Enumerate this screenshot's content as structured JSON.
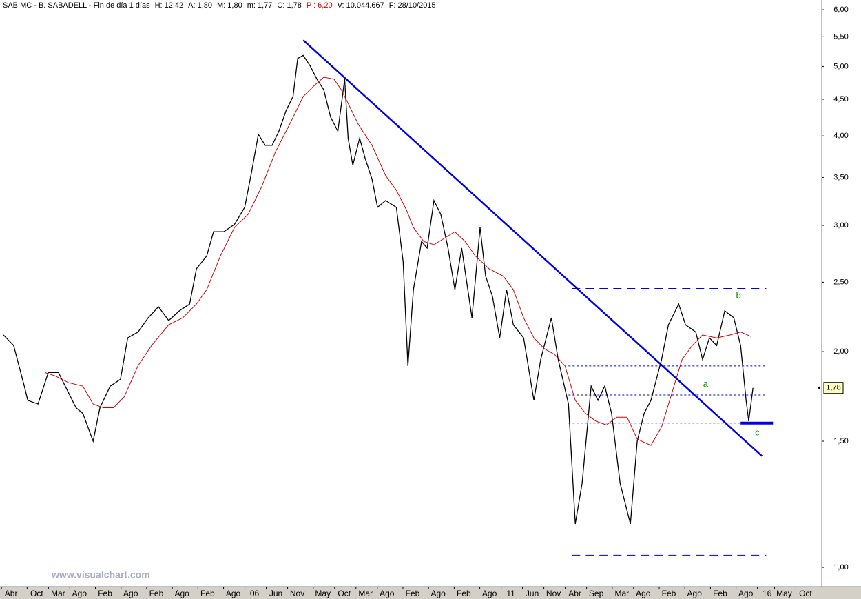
{
  "header": [
    {
      "text": "SAB.MC - B. SABADELL - Fin de día 1 días",
      "color": "#000000"
    },
    {
      "text": "H: 12:42",
      "color": "#000000"
    },
    {
      "text": "A: 1,80",
      "color": "#000000"
    },
    {
      "text": "M: 1,80",
      "color": "#000000"
    },
    {
      "text": "m: 1,77",
      "color": "#000000"
    },
    {
      "text": "C: 1,78",
      "color": "#000000"
    },
    {
      "text": "P : 6,20",
      "color": "#e00000"
    },
    {
      "text": "V: 10.044.667",
      "color": "#000000"
    },
    {
      "text": "F: 28/10/2015",
      "color": "#000000"
    }
  ],
  "chart_data": {
    "type": "line",
    "log_scale": true,
    "xlim": [
      -2.6,
      189.8
    ],
    "ylim": [
      0.94,
      6.19
    ],
    "xticks": [
      {
        "value": 0,
        "label": "Abr"
      },
      {
        "value": 6,
        "label": "Oct"
      },
      {
        "value": 11,
        "label": "Mar"
      },
      {
        "value": 16,
        "label": "Ago"
      },
      {
        "value": 22,
        "label": "Feb"
      },
      {
        "value": 28,
        "label": "Ago"
      },
      {
        "value": 34,
        "label": "Feb"
      },
      {
        "value": 40,
        "label": "Ago"
      },
      {
        "value": 46,
        "label": "Feb"
      },
      {
        "value": 52,
        "label": "Ago"
      },
      {
        "value": 57,
        "label": "06"
      },
      {
        "value": 62,
        "label": "Jun"
      },
      {
        "value": 67,
        "label": "Nov"
      },
      {
        "value": 73,
        "label": "May"
      },
      {
        "value": 78,
        "label": "Oct"
      },
      {
        "value": 83,
        "label": "Mar"
      },
      {
        "value": 88,
        "label": "Ago"
      },
      {
        "value": 94,
        "label": "Feb"
      },
      {
        "value": 100,
        "label": "Ago"
      },
      {
        "value": 106,
        "label": "Feb"
      },
      {
        "value": 112,
        "label": "Ago"
      },
      {
        "value": 117,
        "label": "11"
      },
      {
        "value": 122,
        "label": "Jun"
      },
      {
        "value": 127,
        "label": "Nov"
      },
      {
        "value": 132,
        "label": "Abr"
      },
      {
        "value": 137,
        "label": "Sep"
      },
      {
        "value": 143,
        "label": "Mar"
      },
      {
        "value": 148,
        "label": "Ago"
      },
      {
        "value": 154,
        "label": "Feb"
      },
      {
        "value": 160,
        "label": "Ago"
      },
      {
        "value": 166,
        "label": "Feb"
      },
      {
        "value": 172,
        "label": "Ago"
      },
      {
        "value": 177,
        "label": "16"
      },
      {
        "value": 181,
        "label": "May"
      },
      {
        "value": 186,
        "label": "Oct"
      }
    ],
    "yticks": [
      {
        "value": 1.0,
        "label": "1,00"
      },
      {
        "value": 1.5,
        "label": "1,50"
      },
      {
        "value": 2.0,
        "label": "2,00"
      },
      {
        "value": 2.5,
        "label": "2,50"
      },
      {
        "value": 3.0,
        "label": "3,00"
      },
      {
        "value": 3.5,
        "label": "3,50"
      },
      {
        "value": 4.0,
        "label": "4,00"
      },
      {
        "value": 4.5,
        "label": "4,50"
      },
      {
        "value": 5.0,
        "label": "5,00"
      },
      {
        "value": 5.5,
        "label": "5,50"
      },
      {
        "value": 6.0,
        "label": "6,00"
      }
    ],
    "series": [
      {
        "color": "#000000",
        "x": [
          -1.8,
          0.6,
          3.1,
          3.9,
          6.3,
          8.7,
          11.1,
          13.5,
          15.2,
          16.8,
          19.2,
          20.8,
          23.2,
          25.6,
          27.3,
          29.7,
          32.1,
          34.5,
          36.9,
          39.4,
          41.8,
          43.4,
          45.8,
          47.4,
          49.8,
          52.3,
          54.7,
          56.3,
          57.9,
          59.5,
          61.1,
          62.7,
          64.4,
          66.0,
          67.1,
          68.4,
          70.0,
          71.6,
          73.2,
          74.8,
          76.5,
          78.1,
          78.9,
          80.0,
          81.6,
          82.9,
          84.5,
          85.8,
          87.7,
          90.2,
          91.8,
          92.9,
          94.2,
          96.1,
          97.4,
          99.0,
          100.6,
          102.3,
          103.9,
          105.5,
          107.9,
          109.8,
          111.1,
          112.7,
          114.4,
          116.0,
          117.6,
          120.0,
          122.4,
          124.0,
          126.5,
          128.1,
          130.5,
          132.1,
          133.7,
          135.8,
          137.4,
          139.0,
          140.6,
          142.6,
          145.0,
          146.6,
          148.2,
          149.8,
          152.3,
          153.9,
          156.3,
          157.9,
          160.3,
          161.9,
          163.5,
          165.2,
          167.1,
          169.2,
          170.8,
          172.1,
          172.7,
          173.7
        ],
        "values": [
          2.11,
          2.04,
          1.79,
          1.71,
          1.69,
          1.87,
          1.87,
          1.75,
          1.67,
          1.64,
          1.5,
          1.67,
          1.79,
          1.83,
          2.09,
          2.13,
          2.23,
          2.31,
          2.21,
          2.28,
          2.33,
          2.61,
          2.72,
          2.94,
          2.94,
          3.01,
          3.18,
          3.56,
          4.02,
          3.88,
          3.88,
          4.06,
          4.34,
          4.54,
          5.13,
          5.18,
          5.01,
          4.8,
          4.64,
          4.25,
          4.06,
          4.8,
          3.97,
          3.64,
          3.97,
          3.72,
          3.48,
          3.18,
          3.25,
          3.18,
          2.67,
          1.91,
          2.44,
          2.85,
          2.79,
          3.25,
          3.11,
          2.79,
          2.44,
          2.79,
          2.23,
          2.98,
          2.55,
          2.39,
          2.09,
          2.44,
          2.18,
          2.09,
          1.71,
          1.95,
          2.23,
          1.95,
          1.69,
          1.15,
          1.31,
          1.79,
          1.71,
          1.79,
          1.64,
          1.31,
          1.15,
          1.5,
          1.64,
          1.71,
          1.95,
          2.18,
          2.33,
          2.18,
          2.13,
          1.95,
          2.09,
          2.04,
          2.28,
          2.23,
          2.04,
          1.71,
          1.6,
          1.78
        ]
      },
      {
        "color": "#d40000",
        "x": [
          7.9,
          10.3,
          13.5,
          16.8,
          19.2,
          21.6,
          24.0,
          26.5,
          29.7,
          32.9,
          36.9,
          40.2,
          43.4,
          45.8,
          49.0,
          52.3,
          55.5,
          58.7,
          61.9,
          65.2,
          68.4,
          70.8,
          73.2,
          75.6,
          77.3,
          78.9,
          81.3,
          84.5,
          87.7,
          90.2,
          92.6,
          94.2,
          96.6,
          99.0,
          101.5,
          103.9,
          106.3,
          108.7,
          111.9,
          115.2,
          117.6,
          120.0,
          122.4,
          124.8,
          127.3,
          129.7,
          132.1,
          134.5,
          136.9,
          139.4,
          141.8,
          144.2,
          146.6,
          149.8,
          152.3,
          154.7,
          157.1,
          159.5,
          161.9,
          165.2,
          168.4,
          170.8,
          173.2
        ],
        "values": [
          1.87,
          1.85,
          1.81,
          1.79,
          1.69,
          1.67,
          1.67,
          1.73,
          1.91,
          2.04,
          2.18,
          2.23,
          2.33,
          2.44,
          2.72,
          2.98,
          3.11,
          3.4,
          3.8,
          4.15,
          4.54,
          4.69,
          4.83,
          4.8,
          4.64,
          4.44,
          4.15,
          3.88,
          3.52,
          3.36,
          3.15,
          2.98,
          2.85,
          2.82,
          2.88,
          2.94,
          2.85,
          2.72,
          2.61,
          2.55,
          2.44,
          2.23,
          2.09,
          2.02,
          1.98,
          1.91,
          1.71,
          1.64,
          1.6,
          1.58,
          1.62,
          1.62,
          1.51,
          1.48,
          1.57,
          1.75,
          1.95,
          2.04,
          2.11,
          2.09,
          2.11,
          2.13,
          2.1
        ]
      }
    ],
    "lines": [
      {
        "x": [
          68.4,
          175.8
        ],
        "values": [
          5.44,
          1.43
        ],
        "color": "#0000e6",
        "width": 2.5,
        "dash": "solid"
      },
      {
        "x": [
          131.3,
          176.8
        ],
        "values": [
          2.45,
          2.45
        ],
        "color": "#0000e6",
        "width": 1,
        "dash": "dashed"
      },
      {
        "x": [
          131.3,
          176.8
        ],
        "values": [
          1.04,
          1.04
        ],
        "color": "#0000e6",
        "width": 1,
        "dash": "dashed"
      },
      {
        "x": [
          130.5,
          176.8
        ],
        "values": [
          1.91,
          1.91
        ],
        "color": "#0000e6",
        "width": 1,
        "dash": "dotted"
      },
      {
        "x": [
          130.5,
          176.8
        ],
        "values": [
          1.74,
          1.74
        ],
        "color": "#0000e6",
        "width": 1,
        "dash": "dotted"
      },
      {
        "x": [
          130.5,
          176.8
        ],
        "values": [
          1.59,
          1.59
        ],
        "color": "#0000e6",
        "width": 1,
        "dash": "dotted"
      },
      {
        "x": [
          170.8,
          178.4
        ],
        "values": [
          1.59,
          1.59
        ],
        "color": "#0000e6",
        "width": 4,
        "dash": "solid"
      }
    ],
    "annotations": [
      {
        "text": "a",
        "x": 162.6,
        "y": 1.8,
        "color": "#009900"
      },
      {
        "text": "b",
        "x": 170.3,
        "y": 2.39,
        "color": "#009900"
      },
      {
        "text": "c",
        "x": 174.7,
        "y": 1.54,
        "color": "#009900"
      }
    ],
    "last_price": {
      "value": 1.78,
      "label": "1,78"
    },
    "watermark": "www.visualchart.com"
  }
}
